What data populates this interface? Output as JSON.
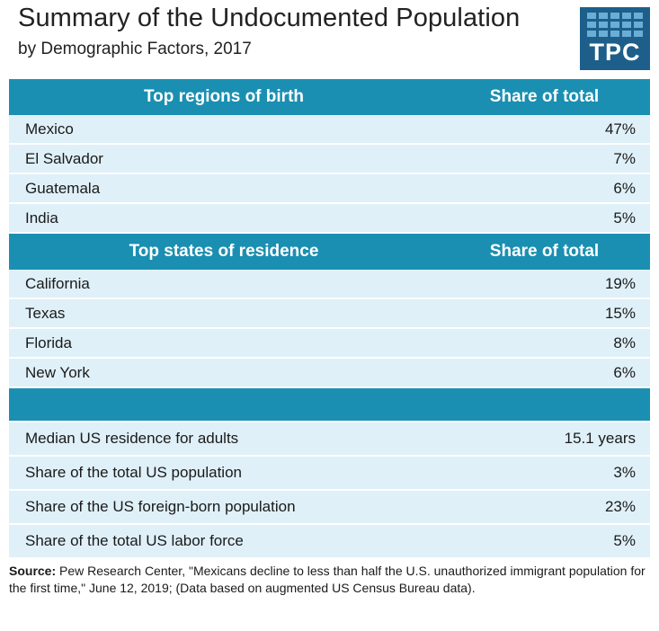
{
  "title": "Summary of the Undocumented Population",
  "subtitle": "by Demographic Factors, 2017",
  "logo": {
    "text": "TPC"
  },
  "chart_data": {
    "type": "table",
    "title": "Summary of the Undocumented Population",
    "subtitle": "by Demographic Factors, 2017",
    "regions": {
      "header": "Top regions of birth",
      "value_header": "Share of total",
      "rows": [
        {
          "label": "Mexico",
          "value": "47%"
        },
        {
          "label": "El Salvador",
          "value": "7%"
        },
        {
          "label": "Guatemala",
          "value": "6%"
        },
        {
          "label": "India",
          "value": "5%"
        }
      ]
    },
    "states": {
      "header": "Top states of residence",
      "value_header": "Share of total",
      "rows": [
        {
          "label": "California",
          "value": "19%"
        },
        {
          "label": "Texas",
          "value": "15%"
        },
        {
          "label": "Florida",
          "value": "8%"
        },
        {
          "label": "New York",
          "value": "6%"
        }
      ]
    },
    "other": {
      "rows": [
        {
          "label": "Median US residence for adults",
          "value": "15.1 years"
        },
        {
          "label": "Share of the total US population",
          "value": "3%"
        },
        {
          "label": "Share of the US foreign-born population",
          "value": "23%"
        },
        {
          "label": "Share of the total US labor force",
          "value": "5%"
        }
      ]
    }
  },
  "source": {
    "label": "Source:",
    "text": " Pew Research Center, \"Mexicans decline to less than half the U.S. unauthorized immigrant population for the first time,\" June 12, 2019;  (Data based on augmented US Census Bureau data)."
  },
  "colors": {
    "header": "#1a8fb2",
    "row": "#dff0f8",
    "logo": "#1d5f8a"
  }
}
